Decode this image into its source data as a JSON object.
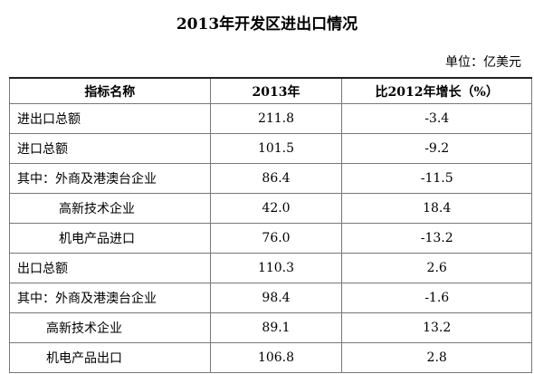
{
  "header": {
    "title": "2013年开发区进出口情况",
    "unit": "单位：亿美元"
  },
  "table": {
    "columns": [
      "指标名称",
      "2013年",
      "比2012年增长（%）"
    ],
    "rows": [
      [
        "进出口总额",
        "211.8",
        "-3.4"
      ],
      [
        "进口总额",
        "101.5",
        "-9.2"
      ],
      [
        "其中：外商及港澳台企业",
        "86.4",
        "-11.5"
      ],
      [
        "高新技术企业",
        "42.0",
        "18.4"
      ],
      [
        "机电产品进口",
        "76.0",
        "-13.2"
      ],
      [
        "出口总额",
        "110.3",
        "2.6"
      ],
      [
        "其中：外商及港澳台企业",
        "98.4",
        "-1.6"
      ],
      [
        "高新技术企业",
        "89.1",
        "13.2"
      ],
      [
        "机电产品出口",
        "106.8",
        "2.8"
      ]
    ]
  }
}
